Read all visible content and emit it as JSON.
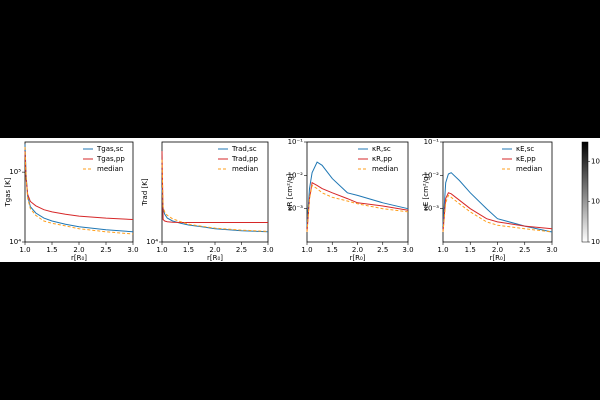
{
  "chart_data": [
    {
      "type": "line",
      "xlabel": "r[R₀]",
      "ylabel": "Tgas [K]",
      "log_y": true,
      "xlim": [
        1.0,
        3.0
      ],
      "xticks": [
        {
          "value": 1.0,
          "label": "1.0"
        },
        {
          "value": 1.5,
          "label": "1.5"
        },
        {
          "value": 2.0,
          "label": "2.0"
        },
        {
          "value": 2.5,
          "label": "2.5"
        },
        {
          "value": 3.0,
          "label": "3.0"
        }
      ],
      "ylim": [
        10000,
        270000
      ],
      "yticks": [
        {
          "value": 10000,
          "label": "10⁴"
        },
        {
          "value": 100000,
          "label": "10⁵"
        }
      ],
      "x": [
        1.0,
        1.02,
        1.05,
        1.1,
        1.2,
        1.35,
        1.5,
        1.75,
        2.0,
        2.5,
        3.0
      ],
      "series": [
        {
          "name": "Tgas,sc",
          "color": "#1f77b4",
          "values": [
            250000,
            90000,
            45000,
            32000,
            26000,
            22000,
            20000,
            18000,
            16500,
            15000,
            14000
          ]
        },
        {
          "name": "Tgas,pp",
          "color": "#d62728",
          "values": [
            200000,
            80000,
            48000,
            38000,
            33000,
            29000,
            27000,
            25000,
            23500,
            22000,
            21000
          ]
        },
        {
          "name": "median",
          "color": "#ff9f1c",
          "linestyle": "dashed",
          "values": [
            230000,
            85000,
            42000,
            30000,
            24000,
            20000,
            18500,
            17000,
            15500,
            14000,
            13000
          ]
        }
      ]
    },
    {
      "type": "line",
      "xlabel": "r[R₀]",
      "ylabel": "Trad [K]",
      "log_y": true,
      "xlim": [
        1.0,
        3.0
      ],
      "xticks": [
        {
          "value": 1.0,
          "label": "1.0"
        },
        {
          "value": 1.5,
          "label": "1.5"
        },
        {
          "value": 2.0,
          "label": "2.0"
        },
        {
          "value": 2.5,
          "label": "2.5"
        },
        {
          "value": 3.0,
          "label": "3.0"
        }
      ],
      "ylim": [
        10000,
        270000
      ],
      "yticks": [
        {
          "value": 10000,
          "label": "10⁴"
        }
      ],
      "x": [
        1.0,
        1.02,
        1.05,
        1.1,
        1.2,
        1.35,
        1.5,
        1.75,
        2.0,
        2.5,
        3.0
      ],
      "series": [
        {
          "name": "Trad,sc",
          "color": "#1f77b4",
          "values": [
            60000,
            30000,
            25000,
            22000,
            20000,
            18500,
            17500,
            16500,
            15500,
            14500,
            14000
          ]
        },
        {
          "name": "Trad,pp",
          "color": "#d62728",
          "values": [
            200000,
            21000,
            20000,
            19500,
            19200,
            19000,
            19000,
            19000,
            19000,
            19000,
            19000
          ]
        },
        {
          "name": "median",
          "color": "#ff9f1c",
          "linestyle": "dashed",
          "values": [
            150000,
            32000,
            27000,
            24000,
            21500,
            19500,
            18000,
            16800,
            15800,
            14800,
            14200
          ]
        }
      ]
    },
    {
      "type": "line",
      "xlabel": "r[R₀]",
      "ylabel": "κR [cm²/g]",
      "log_y": true,
      "xlim": [
        1.0,
        3.0
      ],
      "xticks": [
        {
          "value": 1.0,
          "label": "1.0"
        },
        {
          "value": 1.5,
          "label": "1.5"
        },
        {
          "value": 2.0,
          "label": "2.0"
        },
        {
          "value": 2.5,
          "label": "2.5"
        },
        {
          "value": 3.0,
          "label": "3.0"
        }
      ],
      "ylim": [
        0.0001,
        0.1
      ],
      "yticks": [
        {
          "value": 0.001,
          "label": "10⁻³"
        },
        {
          "value": 0.01,
          "label": "10⁻²"
        },
        {
          "value": 0.1,
          "label": "10⁻¹"
        }
      ],
      "x": [
        1.0,
        1.05,
        1.1,
        1.2,
        1.3,
        1.5,
        1.8,
        2.0,
        2.5,
        3.0
      ],
      "series": [
        {
          "name": "κR,sc",
          "color": "#1f77b4",
          "values": [
            0.0003,
            0.004,
            0.012,
            0.025,
            0.02,
            0.008,
            0.003,
            0.0025,
            0.0015,
            0.001
          ]
        },
        {
          "name": "κR,pp",
          "color": "#d62728",
          "values": [
            0.0002,
            0.002,
            0.006,
            0.005,
            0.004,
            0.003,
            0.002,
            0.0015,
            0.0012,
            0.0009
          ]
        },
        {
          "name": "median",
          "color": "#ff9f1c",
          "linestyle": "dashed",
          "values": [
            0.0002,
            0.002,
            0.005,
            0.004,
            0.003,
            0.0022,
            0.0017,
            0.0014,
            0.001,
            0.0008
          ]
        }
      ]
    },
    {
      "type": "line",
      "xlabel": "r[R₀]",
      "ylabel": "κE [cm²/g]",
      "log_y": true,
      "xlim": [
        1.0,
        3.0
      ],
      "xticks": [
        {
          "value": 1.0,
          "label": "1.0"
        },
        {
          "value": 1.5,
          "label": "1.5"
        },
        {
          "value": 2.0,
          "label": "2.0"
        },
        {
          "value": 2.5,
          "label": "2.5"
        },
        {
          "value": 3.0,
          "label": "3.0"
        }
      ],
      "ylim": [
        0.0001,
        0.1
      ],
      "yticks": [
        {
          "value": 0.001,
          "label": "10⁻³"
        },
        {
          "value": 0.01,
          "label": "10⁻²"
        },
        {
          "value": 0.1,
          "label": "10⁻¹"
        }
      ],
      "x": [
        1.0,
        1.05,
        1.1,
        1.15,
        1.3,
        1.5,
        1.8,
        2.0,
        2.5,
        3.0
      ],
      "series": [
        {
          "name": "κE,sc",
          "color": "#1f77b4",
          "values": [
            0.0003,
            0.006,
            0.011,
            0.012,
            0.007,
            0.003,
            0.001,
            0.0005,
            0.0003,
            0.0002
          ]
        },
        {
          "name": "κE,pp",
          "color": "#d62728",
          "values": [
            0.0002,
            0.002,
            0.003,
            0.0028,
            0.0018,
            0.001,
            0.0005,
            0.0004,
            0.0003,
            0.00025
          ]
        },
        {
          "name": "median",
          "color": "#ff9f1c",
          "linestyle": "dashed",
          "values": [
            0.0002,
            0.0015,
            0.0025,
            0.0022,
            0.0014,
            0.0008,
            0.0004,
            0.00032,
            0.00025,
            0.0002
          ]
        }
      ]
    }
  ],
  "colorbar": {
    "ticks": [
      {
        "value": 100,
        "label": "10²"
      },
      {
        "value": 10,
        "label": "10¹"
      },
      {
        "value": 1,
        "label": "10⁰"
      }
    ],
    "lim": [
      1,
      300
    ]
  }
}
